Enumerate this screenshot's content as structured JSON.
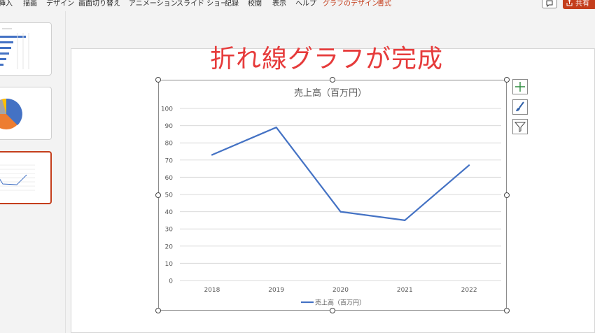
{
  "ribbon": {
    "tabs": [
      {
        "label": "挿入",
        "contextual": false
      },
      {
        "label": "描画",
        "contextual": false
      },
      {
        "label": "デザイン",
        "contextual": false
      },
      {
        "label": "画面切り替え",
        "contextual": false
      },
      {
        "label": "アニメーション",
        "contextual": false
      },
      {
        "label": "スライド ショー",
        "contextual": false
      },
      {
        "label": "記録",
        "contextual": false
      },
      {
        "label": "校閲",
        "contextual": false
      },
      {
        "label": "表示",
        "contextual": false
      },
      {
        "label": "ヘルプ",
        "contextual": false
      },
      {
        "label": "グラフのデザイン",
        "contextual": true
      },
      {
        "label": "書式",
        "contextual": true
      }
    ],
    "share_label": "共有"
  },
  "slide": {
    "title": "折れ線グラフが完成"
  },
  "colors": {
    "accent": "#c43e1c",
    "title": "#e63b3b",
    "series": "#4472c4"
  },
  "chart_data": {
    "type": "line",
    "title": "売上高（百万円）",
    "x": [
      "2018",
      "2019",
      "2020",
      "2021",
      "2022"
    ],
    "series": [
      {
        "name": "売上高（百万円）",
        "values": [
          73,
          89,
          40,
          35,
          67
        ]
      }
    ],
    "ylim": [
      0,
      100
    ],
    "yticks": [
      "0",
      "10",
      "20",
      "30",
      "40",
      "50",
      "60",
      "70",
      "80",
      "90",
      "100"
    ],
    "grid": true,
    "legend": "bottom"
  }
}
